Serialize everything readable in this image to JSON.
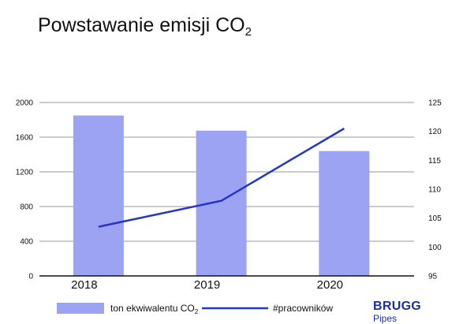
{
  "chart_data": {
    "type": "bar",
    "title": "Powstawanie emisji CO",
    "title_subscript": "2",
    "categories": [
      "2018",
      "2019",
      "2020"
    ],
    "series": [
      {
        "name": "ton ekwiwalentu CO",
        "name_subscript": "2",
        "type": "bar",
        "axis": "left",
        "color": "#9ca3f2",
        "values": [
          1850,
          1675,
          1440
        ]
      },
      {
        "name": "#pracowników",
        "type": "line",
        "axis": "right",
        "color": "#2336c7",
        "values": [
          103.5,
          108,
          120.5
        ]
      }
    ],
    "y_left": {
      "min": 0,
      "max": 2000,
      "ticks": [
        0,
        400,
        800,
        1200,
        1600,
        2000
      ]
    },
    "y_right": {
      "min": 95,
      "max": 125,
      "ticks": [
        95,
        100,
        105,
        110,
        115,
        120,
        125
      ]
    },
    "grid": true,
    "legend_position": "bottom"
  },
  "brand": {
    "name": "BRUGG",
    "sub": "Pipes"
  }
}
